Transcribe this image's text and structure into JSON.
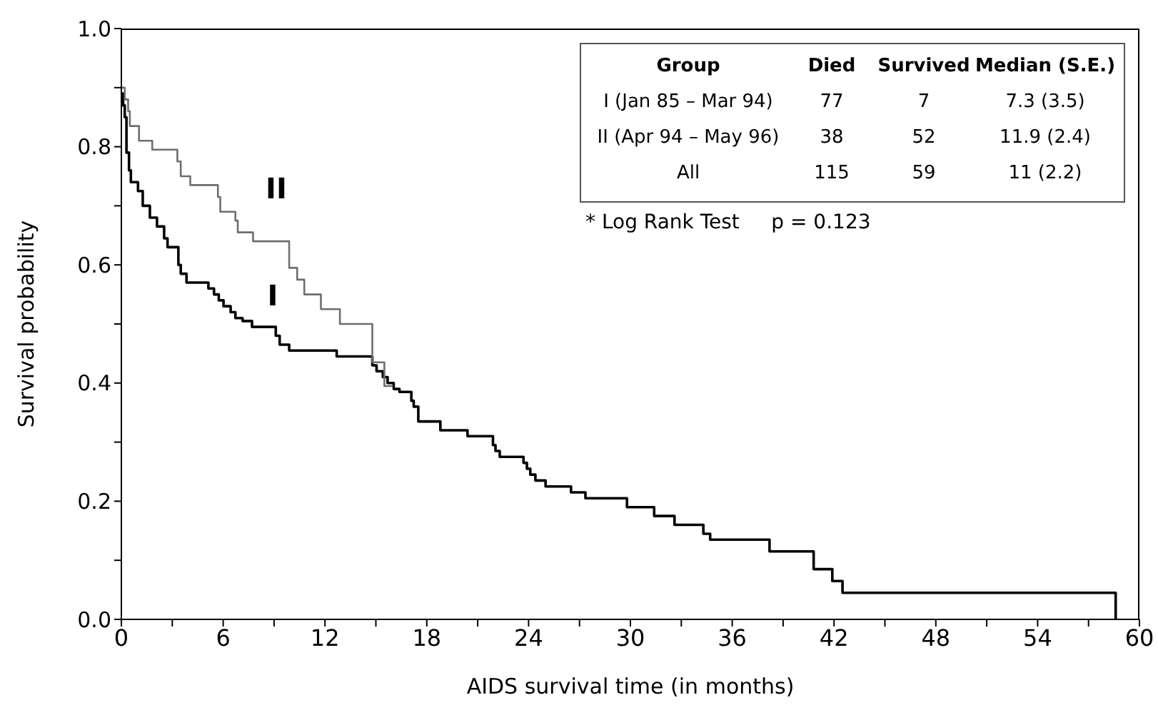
{
  "chart_data": {
    "type": "step",
    "xlabel": "AIDS survival time (in months)",
    "ylabel": "Survival probability",
    "xlim": [
      0,
      60
    ],
    "xticks": [
      0,
      {
        "value": 3,
        "label": null
      },
      6,
      {
        "value": 9,
        "label": null
      },
      12,
      {
        "value": 15,
        "label": null
      },
      18,
      {
        "value": 21,
        "label": null
      },
      24,
      {
        "value": 27,
        "label": null
      },
      30,
      {
        "value": 33,
        "label": null
      },
      36,
      {
        "value": 39,
        "label": null
      },
      42,
      {
        "value": 45,
        "label": null
      },
      48,
      {
        "value": 51,
        "label": null
      },
      54,
      {
        "value": 57,
        "label": null
      },
      60
    ],
    "ylim": [
      0,
      1
    ],
    "yticks": [
      {
        "value": 0,
        "label": "0.0"
      },
      {
        "value": 0.1,
        "label": null
      },
      {
        "value": 0.2,
        "label": "0.2"
      },
      {
        "value": 0.3,
        "label": null
      },
      {
        "value": 0.4,
        "label": "0.4"
      },
      {
        "value": 0.5,
        "label": null
      },
      {
        "value": 0.6,
        "label": "0.6"
      },
      {
        "value": 0.7,
        "label": null
      },
      {
        "value": 0.8,
        "label": "0.8"
      },
      {
        "value": 0.9,
        "label": null
      },
      {
        "value": 1,
        "label": "1.0"
      }
    ],
    "grid": false,
    "legend": false,
    "marker": "none",
    "series": [
      {
        "name": "I",
        "color": "#000000",
        "line_style": "solid",
        "x": [
          0,
          0.1,
          0.2,
          0.3,
          0.45,
          0.56,
          0.98,
          1.26,
          1.68,
          2.1,
          2.52,
          2.72,
          3.36,
          3.5,
          3.84,
          5.13,
          5.46,
          5.74,
          6.02,
          6.44,
          6.72,
          7.14,
          7.7,
          9.1,
          9.33,
          9.89,
          12.69,
          14.79,
          15.04,
          15.41,
          15.69,
          16.05,
          16.39,
          17.09,
          17.23,
          17.5,
          18.8,
          20.4,
          21.9,
          22.05,
          22.3,
          23.7,
          23.9,
          24.1,
          24.4,
          25.0,
          26.5,
          27.35,
          29.8,
          31.4,
          32.6,
          34.3,
          34.7,
          38.2,
          40.8,
          41.9,
          42.5,
          58.6
        ],
        "values": [
          0.89,
          0.87,
          0.85,
          0.79,
          0.76,
          0.74,
          0.725,
          0.7,
          0.68,
          0.665,
          0.645,
          0.63,
          0.6,
          0.585,
          0.57,
          0.56,
          0.55,
          0.54,
          0.53,
          0.52,
          0.51,
          0.505,
          0.495,
          0.48,
          0.465,
          0.455,
          0.445,
          0.43,
          0.42,
          0.41,
          0.4,
          0.39,
          0.385,
          0.37,
          0.36,
          0.335,
          0.32,
          0.31,
          0.295,
          0.285,
          0.275,
          0.265,
          0.255,
          0.245,
          0.235,
          0.225,
          0.215,
          0.205,
          0.19,
          0.175,
          0.16,
          0.145,
          0.135,
          0.115,
          0.085,
          0.065,
          0.045,
          0
        ]
      },
      {
        "name": "II",
        "color": "#6e6e6e",
        "line_style": "solid",
        "x": [
          0,
          0.2,
          0.4,
          0.5,
          1.04,
          1.82,
          3.3,
          3.5,
          4.06,
          5.69,
          5.83,
          6.72,
          6.86,
          7.76,
          9.89,
          10.36,
          10.78,
          11.76,
          12.88,
          14.79,
          15.5,
          16
        ],
        "values": [
          0.9,
          0.88,
          0.86,
          0.835,
          0.81,
          0.795,
          0.775,
          0.75,
          0.735,
          0.715,
          0.69,
          0.675,
          0.655,
          0.64,
          0.595,
          0.575,
          0.55,
          0.525,
          0.5,
          0.435,
          0.395,
          0.395
        ]
      }
    ],
    "annotations": [
      "Group",
      "Died",
      "Survived",
      "Median (S.E.)",
      "I (Jan 85 – Mar 94)",
      "77",
      "7",
      "7.3  (3.5)",
      "II (Apr 94 – May 96)",
      "38",
      "52",
      "11.9  (2.4)",
      "All",
      "115",
      "59",
      "11  (2.2)",
      "* Log Rank Test     p = 0.123"
    ]
  }
}
